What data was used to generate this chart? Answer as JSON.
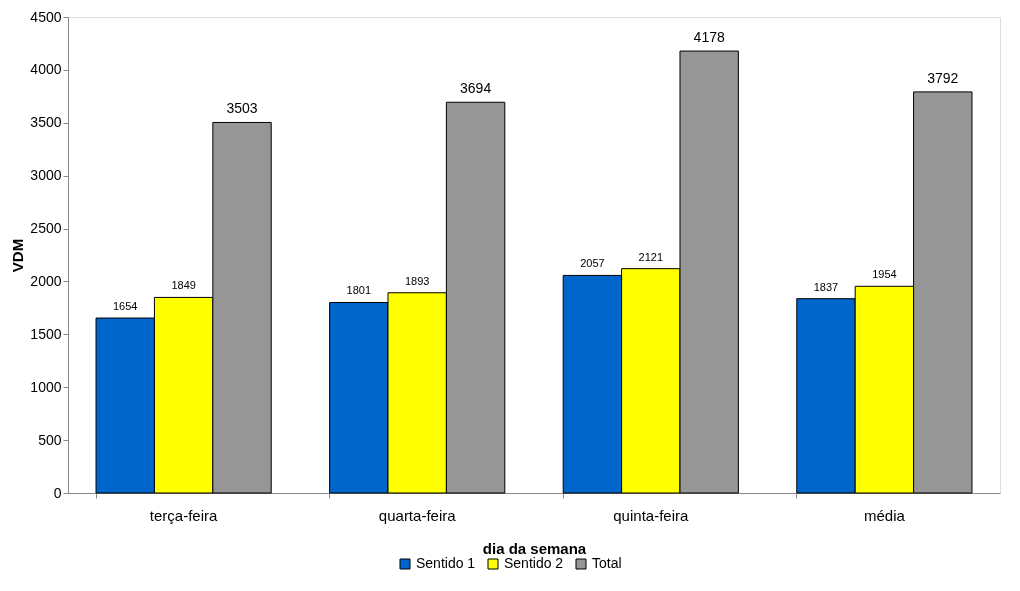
{
  "chart_data": {
    "type": "bar",
    "xlabel": "dia da semana",
    "ylabel": "VDM",
    "categories": [
      "terça-feira",
      "quarta-feira",
      "quinta-feira",
      "média"
    ],
    "series": [
      {
        "name": "Sentido 1",
        "color": "#0066cc",
        "values": [
          1654,
          1801,
          2057,
          1837
        ]
      },
      {
        "name": "Sentido 2",
        "color": "#ffff00",
        "values": [
          1849,
          1893,
          2121,
          1954
        ]
      },
      {
        "name": "Total",
        "color": "#969696",
        "values": [
          3503,
          3694,
          4178,
          3792
        ]
      }
    ],
    "ylim": [
      0,
      4500
    ],
    "yticks": [
      0,
      500,
      1000,
      1500,
      2000,
      2500,
      3000,
      3500,
      4000,
      4500
    ],
    "data_labels": true,
    "grid": false,
    "legend": "bottom"
  }
}
